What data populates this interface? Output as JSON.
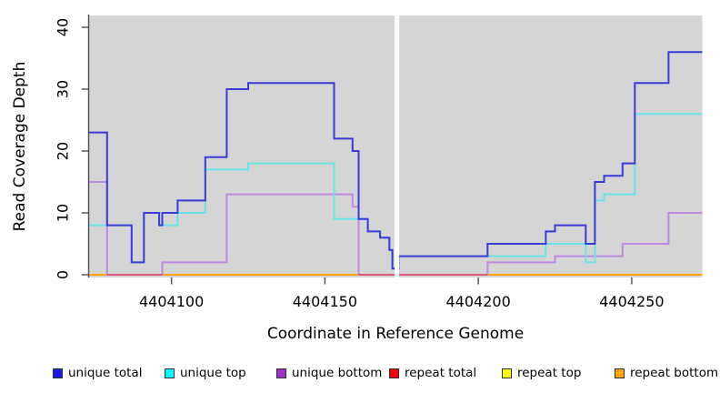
{
  "chart_data": {
    "type": "line",
    "subtype": "step-after",
    "title": "",
    "xlabel": "Coordinate in Reference Genome",
    "ylabel": "Read Coverage Depth",
    "xlim": [
      4404073,
      4404273
    ],
    "ylim": [
      0,
      40
    ],
    "x_ticks": [
      4404100,
      4404150,
      4404200,
      4404250
    ],
    "y_ticks": [
      0,
      10,
      20,
      30,
      40
    ],
    "grid": false,
    "legend_position": "bottom",
    "plot_background": "#d5d5d5",
    "axis_color": "#4d4d4d",
    "gap_region": {
      "x_start": 4404172.7,
      "x_end": 4404174.2,
      "color": "#ffffff"
    },
    "zero_overlap_color": "#e0557a",
    "zero_overlap_segments": [
      {
        "x_start": 4404079,
        "x_end": 4404097
      },
      {
        "x_start": 4404161,
        "x_end": 4404203
      }
    ],
    "series": [
      {
        "name": "unique total",
        "swatch": "#1a1aee",
        "line_color": "#3a3ad9",
        "points": [
          [
            4404073,
            23
          ],
          [
            4404079,
            8
          ],
          [
            4404087,
            2
          ],
          [
            4404091,
            10
          ],
          [
            4404096,
            8
          ],
          [
            4404097,
            10
          ],
          [
            4404102,
            12
          ],
          [
            4404111,
            19
          ],
          [
            4404118,
            30
          ],
          [
            4404125,
            31
          ],
          [
            4404153,
            22
          ],
          [
            4404159,
            20
          ],
          [
            4404161,
            9
          ],
          [
            4404164,
            7
          ],
          [
            4404168,
            6
          ],
          [
            4404171,
            4
          ],
          [
            4404172,
            1
          ],
          [
            4404174,
            3
          ],
          [
            4404203,
            5
          ],
          [
            4404222,
            7
          ],
          [
            4404225,
            8
          ],
          [
            4404235,
            5
          ],
          [
            4404238,
            15
          ],
          [
            4404241,
            16
          ],
          [
            4404247,
            18
          ],
          [
            4404251,
            31
          ],
          [
            4404262,
            36
          ]
        ]
      },
      {
        "name": "unique top",
        "swatch": "#00ffff",
        "line_color": "#66e5e8",
        "points": [
          [
            4404073,
            8
          ],
          [
            4404087,
            2
          ],
          [
            4404091,
            10
          ],
          [
            4404096,
            8
          ],
          [
            4404102,
            10
          ],
          [
            4404111,
            17
          ],
          [
            4404125,
            18
          ],
          [
            4404153,
            9
          ],
          [
            4404164,
            7
          ],
          [
            4404168,
            6
          ],
          [
            4404171,
            4
          ],
          [
            4404172,
            1
          ],
          [
            4404174,
            3
          ],
          [
            4404222,
            5
          ],
          [
            4404235,
            2
          ],
          [
            4404238,
            12
          ],
          [
            4404241,
            13
          ],
          [
            4404251,
            26
          ]
        ]
      },
      {
        "name": "unique bottom",
        "swatch": "#9932cc",
        "line_color": "#bd89e0",
        "points": [
          [
            4404073,
            15
          ],
          [
            4404079,
            0
          ],
          [
            4404097,
            2
          ],
          [
            4404118,
            13
          ],
          [
            4404159,
            11
          ],
          [
            4404161,
            0
          ],
          [
            4404203,
            2
          ],
          [
            4404225,
            3
          ],
          [
            4404247,
            5
          ],
          [
            4404262,
            10
          ]
        ]
      },
      {
        "name": "repeat total",
        "swatch": "#ff0000",
        "line_color": "#e0557a",
        "points": [
          [
            4404073,
            0
          ]
        ]
      },
      {
        "name": "repeat top",
        "swatch": "#ffff00",
        "line_color": "#ffff00",
        "points": [
          [
            4404073,
            0
          ]
        ]
      },
      {
        "name": "repeat bottom",
        "swatch": "#ffa500",
        "line_color": "#ffa500",
        "points": [
          [
            4404073,
            0
          ]
        ]
      }
    ]
  }
}
